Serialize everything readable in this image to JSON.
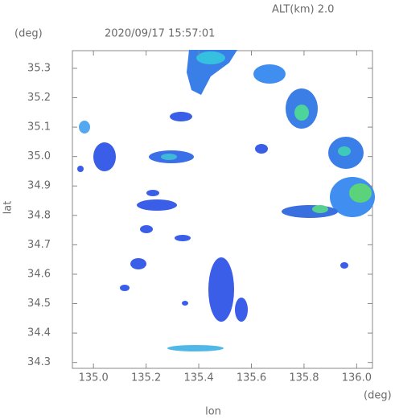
{
  "chart_data": {
    "type": "map",
    "altitude": "ALT(km) 2.0",
    "timestamp": "2020/09/17 15:57:01",
    "xlabel": "lon",
    "ylabel": "lat",
    "xunit": "(deg)",
    "yunit": "(deg)",
    "xlim": [
      134.92,
      136.06
    ],
    "ylim": [
      34.28,
      35.36
    ],
    "xticks": [
      {
        "value": 135.0,
        "label": "135.0"
      },
      {
        "value": 135.2,
        "label": "135.2"
      },
      {
        "value": 135.4,
        "label": "135.4"
      },
      {
        "value": 135.6,
        "label": "135.6"
      },
      {
        "value": 135.8,
        "label": "135.8"
      },
      {
        "value": 136.0,
        "label": "136.0"
      }
    ],
    "yticks": [
      34.3,
      34.4,
      34.5,
      34.6,
      34.7,
      34.8,
      34.9,
      {
        "value": 35.0,
        "label": "35.0"
      },
      35.1,
      35.2,
      35.3
    ]
  }
}
